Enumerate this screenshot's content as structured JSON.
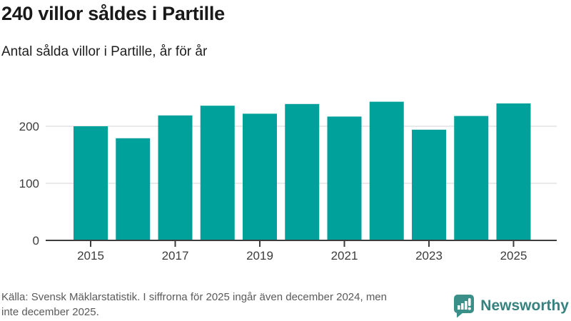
{
  "header": {
    "title": "240 villor såldes i Partille",
    "subtitle": "Antal sålda villor i Partille, år för år"
  },
  "chart_data": {
    "type": "bar",
    "title": "240 villor såldes i Partille",
    "subtitle": "Antal sålda villor i Partille, år för år",
    "categories": [
      "2015",
      "2016",
      "2017",
      "2018",
      "2019",
      "2020",
      "2021",
      "2022",
      "2023",
      "2024",
      "2025"
    ],
    "values": [
      200,
      179,
      219,
      236,
      222,
      239,
      217,
      243,
      194,
      218,
      240
    ],
    "xlabel": "",
    "ylabel": "",
    "ylim": [
      0,
      250
    ],
    "yticks": [
      0,
      100,
      200
    ],
    "xtick_labels": [
      "2015",
      "2017",
      "2019",
      "2021",
      "2023",
      "2025"
    ],
    "grid": true,
    "legend": "none",
    "bar_color": "#00A09B"
  },
  "footer": {
    "source_lines": [
      "Källa: Svensk Mäklarstatistik. I siffrorna för 2025 ingår även december 2024, men",
      "inte december 2025."
    ],
    "logo_text": "Newsworthy"
  },
  "colors": {
    "accent": "#00A09B",
    "logo_icon": "#3A9089",
    "logo_text": "#35827E"
  }
}
